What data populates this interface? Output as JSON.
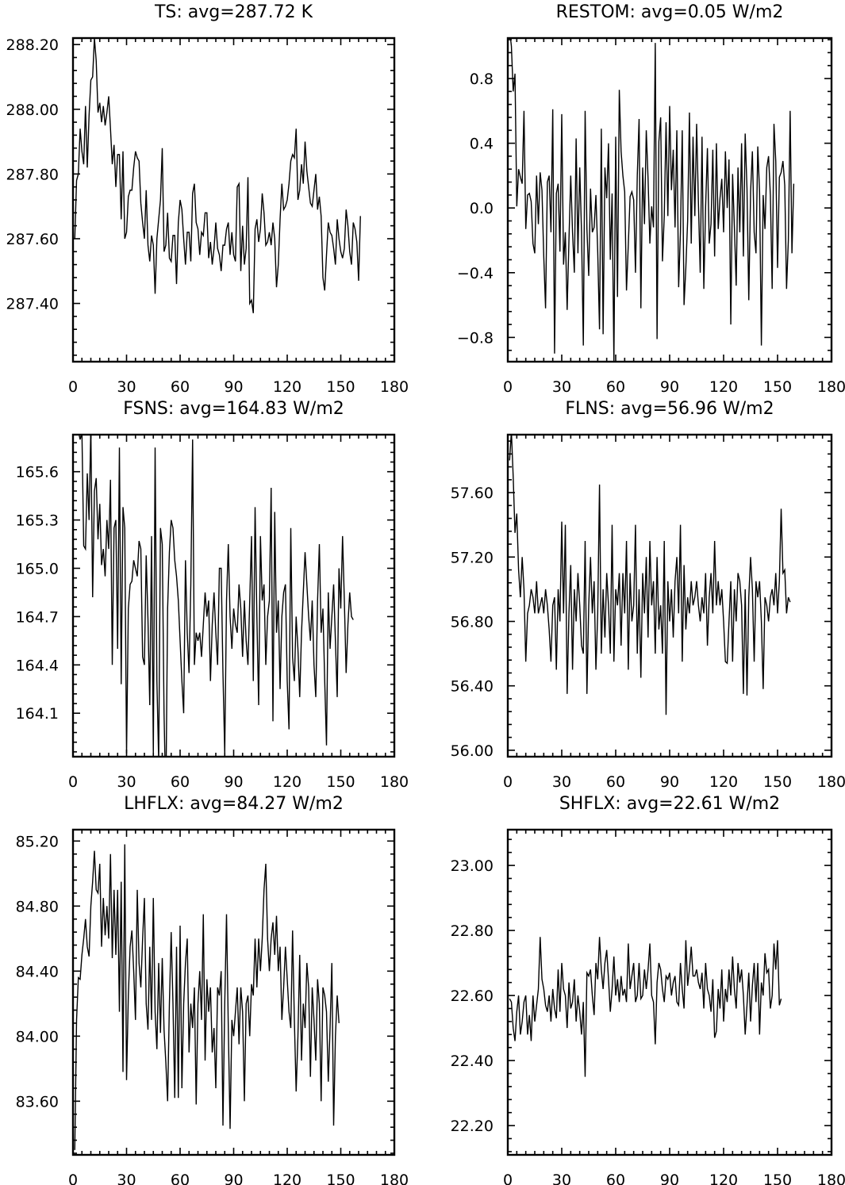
{
  "chart_data": [
    {
      "type": "line",
      "title": "TS: avg=287.72 K",
      "xlabel": "",
      "ylabel": "",
      "xlim": [
        0,
        180
      ],
      "ylim": [
        287.22,
        288.22
      ],
      "xticks": [
        0,
        30,
        60,
        90,
        120,
        150,
        180
      ],
      "xtick_labels": [
        "0",
        "30",
        "60",
        "90",
        "120",
        "150",
        "180"
      ],
      "yticks": [
        287.4,
        287.6,
        287.8,
        288.0,
        288.2
      ],
      "ytick_labels": [
        "287.40",
        "287.60",
        "287.80",
        "288.00",
        "288.20"
      ],
      "grid": false,
      "x_start": 1,
      "x_step": 1,
      "values": [
        287.6,
        287.78,
        287.8,
        287.94,
        287.87,
        287.83,
        288.01,
        287.82,
        287.98,
        288.09,
        288.1,
        288.22,
        288.15,
        287.99,
        288.02,
        287.96,
        288.01,
        287.95,
        287.99,
        288.04,
        287.94,
        287.83,
        287.89,
        287.76,
        287.86,
        287.86,
        287.66,
        287.87,
        287.6,
        287.62,
        287.73,
        287.75,
        287.75,
        287.82,
        287.87,
        287.85,
        287.84,
        287.71,
        287.65,
        287.6,
        287.75,
        287.58,
        287.53,
        287.61,
        287.58,
        287.43,
        287.6,
        287.66,
        287.72,
        287.88,
        287.56,
        287.58,
        287.68,
        287.54,
        287.53,
        287.61,
        287.61,
        287.46,
        287.65,
        287.72,
        287.69,
        287.6,
        287.52,
        287.62,
        287.62,
        287.53,
        287.74,
        287.77,
        287.65,
        287.63,
        287.55,
        287.62,
        287.61,
        287.68,
        287.68,
        287.54,
        287.59,
        287.52,
        287.57,
        287.65,
        287.57,
        287.55,
        287.5,
        287.58,
        287.58,
        287.63,
        287.65,
        287.55,
        287.62,
        287.55,
        287.53,
        287.76,
        287.77,
        287.5,
        287.64,
        287.52,
        287.57,
        287.79,
        287.4,
        287.41,
        287.37,
        287.63,
        287.66,
        287.59,
        287.63,
        287.74,
        287.68,
        287.58,
        287.59,
        287.62,
        287.58,
        287.65,
        287.6,
        287.45,
        287.52,
        287.66,
        287.77,
        287.69,
        287.7,
        287.72,
        287.77,
        287.84,
        287.86,
        287.85,
        287.94,
        287.72,
        287.75,
        287.83,
        287.77,
        287.9,
        287.81,
        287.76,
        287.71,
        287.7,
        287.75,
        287.8,
        287.69,
        287.73,
        287.67,
        287.48,
        287.44,
        287.55,
        287.65,
        287.62,
        287.61,
        287.57,
        287.52,
        287.66,
        287.6,
        287.56,
        287.54,
        287.57,
        287.69,
        287.64,
        287.56,
        287.52,
        287.65,
        287.63,
        287.59,
        287.47,
        287.67
      ]
    },
    {
      "type": "line",
      "title": "RESTOM: avg=0.05 W/m2",
      "xlabel": "",
      "ylabel": "",
      "xlim": [
        0,
        180
      ],
      "ylim": [
        -0.95,
        1.05
      ],
      "xticks": [
        0,
        30,
        60,
        90,
        120,
        150,
        180
      ],
      "xtick_labels": [
        "0",
        "30",
        "60",
        "90",
        "120",
        "150",
        "180"
      ],
      "yticks": [
        -0.8,
        -0.4,
        0.0,
        0.4,
        0.8
      ],
      "ytick_labels": [
        "−0.8",
        "−0.4",
        "0.0",
        "0.4",
        "0.8"
      ],
      "grid": false,
      "x_start": 1,
      "x_step": 1,
      "values": [
        1.1,
        1.0,
        0.72,
        0.83,
        0.01,
        0.24,
        0.19,
        0.15,
        0.6,
        -0.13,
        0.08,
        0.09,
        0.04,
        -0.22,
        -0.28,
        0.2,
        -0.1,
        0.22,
        0.11,
        -0.3,
        -0.62,
        0.16,
        0.2,
        -0.15,
        0.61,
        -0.9,
        0.09,
        0.15,
        -0.27,
        0.58,
        -0.35,
        -0.15,
        -0.63,
        -0.2,
        0.2,
        -0.15,
        -0.4,
        0.43,
        -0.28,
        0.25,
        -0.15,
        -0.85,
        0.6,
        -0.13,
        -0.42,
        0.12,
        -0.15,
        -0.12,
        0.08,
        -0.27,
        -0.75,
        0.49,
        -0.78,
        0.25,
        0.06,
        0.4,
        -0.32,
        0.09,
        -0.95,
        0.44,
        -0.55,
        0.73,
        0.35,
        0.2,
        0.1,
        -0.51,
        -0.23,
        0.07,
        0.1,
        0.05,
        -0.4,
        0.2,
        0.55,
        -0.62,
        0.25,
        -0.1,
        0.48,
        0.18,
        -0.22,
        0.01,
        -0.12,
        1.02,
        -0.81,
        0.41,
        0.56,
        -0.33,
        -0.05,
        0.53,
        -0.05,
        0.63,
        0.11,
        0.36,
        -0.12,
        0.48,
        -0.49,
        -0.15,
        0.48,
        -0.6,
        -0.37,
        -0.08,
        0.59,
        -0.22,
        0.44,
        -0.05,
        0.52,
        0.03,
        -0.4,
        0.44,
        -0.5,
        0.01,
        0.37,
        -0.22,
        -0.1,
        0.36,
        -0.3,
        0.4,
        -0.13,
        0.06,
        0.18,
        -0.15,
        0.35,
        0.0,
        0.3,
        -0.72,
        0.21,
        -0.12,
        -0.48,
        0.25,
        -0.15,
        0.4,
        -0.3,
        0.46,
        0.12,
        -0.57,
        0.1,
        0.35,
        -0.15,
        -0.28,
        0.38,
        0.1,
        -0.85,
        0.08,
        -0.13,
        0.25,
        0.32,
        0.08,
        -0.5,
        0.52,
        0.29,
        -0.37,
        0.19,
        0.22,
        0.29,
        0.14,
        -0.5,
        -0.2,
        0.6,
        -0.28,
        0.15
      ]
    },
    {
      "type": "line",
      "title": "FSNS: avg=164.83 W/m2",
      "xlabel": "",
      "ylabel": "",
      "xlim": [
        0,
        180
      ],
      "ylim": [
        163.83,
        165.83
      ],
      "xticks": [
        0,
        30,
        60,
        90,
        120,
        150,
        180
      ],
      "xtick_labels": [
        "0",
        "30",
        "60",
        "90",
        "120",
        "150",
        "180"
      ],
      "yticks": [
        164.1,
        164.4,
        164.7,
        165.0,
        165.3,
        165.6
      ],
      "ytick_labels": [
        "164.1",
        "164.4",
        "164.7",
        "165.0",
        "165.3",
        "165.6"
      ],
      "grid": false,
      "x_start": 1,
      "x_step": 1,
      "values": [
        165.95,
        165.9,
        165.85,
        165.8,
        165.85,
        165.14,
        165.12,
        165.59,
        165.3,
        165.88,
        164.82,
        165.48,
        165.56,
        165.18,
        165.4,
        165.02,
        165.12,
        164.95,
        165.3,
        165.12,
        165.55,
        164.4,
        165.25,
        165.3,
        164.5,
        165.75,
        164.28,
        165.38,
        165.25,
        163.85,
        164.75,
        164.9,
        164.92,
        165.05,
        165.0,
        164.95,
        165.17,
        165.12,
        164.45,
        164.4,
        165.08,
        164.68,
        164.15,
        165.2,
        163.85,
        165.75,
        164.3,
        163.8,
        165.25,
        165.15,
        164.1,
        163.55,
        164.75,
        165.1,
        165.3,
        165.25,
        165.05,
        164.95,
        164.8,
        164.55,
        164.3,
        164.1,
        165.05,
        164.6,
        164.35,
        164.9,
        165.8,
        164.4,
        164.6,
        164.55,
        164.6,
        164.45,
        164.65,
        164.85,
        164.7,
        164.8,
        164.3,
        164.65,
        164.85,
        164.6,
        164.4,
        165.0,
        165.0,
        164.35,
        163.85,
        164.8,
        165.15,
        164.7,
        164.5,
        164.75,
        164.65,
        164.6,
        164.9,
        164.75,
        164.45,
        164.8,
        164.55,
        164.4,
        164.8,
        165.2,
        164.3,
        165.38,
        164.7,
        164.15,
        165.2,
        164.8,
        164.9,
        164.4,
        164.7,
        164.8,
        165.5,
        164.05,
        165.35,
        164.6,
        164.8,
        164.25,
        164.7,
        164.85,
        164.9,
        164.3,
        164.0,
        165.25,
        164.45,
        164.3,
        164.7,
        164.5,
        164.2,
        164.6,
        164.85,
        165.1,
        164.9,
        164.7,
        164.55,
        164.8,
        164.4,
        164.2,
        164.8,
        165.15,
        164.6,
        164.75,
        164.3,
        163.9,
        164.85,
        164.5,
        164.7,
        164.9,
        164.55,
        164.2,
        165.0,
        164.75,
        165.2,
        164.8,
        164.35,
        164.65,
        164.85,
        164.7,
        164.68
      ]
    },
    {
      "type": "line",
      "title": "FLNS: avg=56.96 W/m2",
      "xlabel": "",
      "ylabel": "",
      "xlim": [
        0,
        180
      ],
      "ylim": [
        55.96,
        57.96
      ],
      "xticks": [
        0,
        30,
        60,
        90,
        120,
        150,
        180
      ],
      "xtick_labels": [
        "0",
        "30",
        "60",
        "90",
        "120",
        "150",
        "180"
      ],
      "yticks": [
        56.0,
        56.4,
        56.8,
        57.2,
        57.6
      ],
      "ytick_labels": [
        "56.00",
        "56.40",
        "56.80",
        "57.20",
        "57.60"
      ],
      "grid": false,
      "x_start": 1,
      "x_step": 1,
      "values": [
        57.8,
        57.98,
        57.7,
        57.35,
        57.47,
        57.12,
        56.95,
        57.2,
        57.0,
        56.55,
        56.85,
        56.9,
        57.0,
        56.95,
        56.85,
        57.05,
        56.85,
        56.9,
        56.95,
        56.85,
        57.0,
        56.9,
        56.75,
        56.55,
        56.9,
        56.95,
        56.5,
        57.0,
        56.8,
        57.42,
        56.85,
        57.4,
        56.35,
        56.85,
        57.15,
        56.5,
        57.0,
        56.8,
        57.1,
        56.9,
        56.65,
        56.6,
        57.3,
        56.35,
        56.9,
        57.2,
        56.85,
        57.05,
        56.5,
        56.85,
        57.65,
        56.6,
        57.0,
        56.7,
        57.1,
        56.9,
        56.6,
        57.4,
        56.55,
        57.0,
        56.9,
        57.1,
        56.65,
        57.1,
        56.85,
        57.3,
        56.5,
        57.1,
        56.8,
        56.9,
        57.4,
        56.6,
        57.0,
        56.45,
        57.1,
        56.85,
        57.2,
        56.7,
        57.3,
        56.9,
        57.05,
        56.6,
        57.2,
        56.75,
        56.9,
        56.6,
        57.3,
        56.22,
        57.05,
        56.8,
        57.0,
        56.7,
        57.05,
        57.2,
        56.85,
        57.4,
        56.55,
        57.15,
        56.75,
        56.95,
        56.85,
        57.05,
        56.9,
        56.95,
        57.05,
        56.9,
        56.8,
        56.95,
        56.85,
        57.1,
        56.65,
        56.95,
        57.1,
        56.85,
        57.3,
        56.9,
        57.05,
        56.9,
        57.0,
        56.8,
        56.55,
        56.54,
        56.8,
        57.05,
        56.55,
        57.0,
        56.8,
        57.1,
        57.05,
        56.9,
        56.35,
        57.0,
        56.34,
        56.95,
        57.2,
        57.0,
        56.55,
        57.05,
        56.95,
        57.05,
        56.8,
        56.38,
        56.95,
        56.9,
        56.8,
        56.95,
        57.0,
        56.9,
        57.1,
        56.85,
        57.05,
        57.5,
        57.1,
        57.12,
        56.85,
        56.95,
        56.92
      ]
    },
    {
      "type": "line",
      "title": "LHFLX: avg=84.27 W/m2",
      "xlabel": "",
      "ylabel": "",
      "xlim": [
        0,
        180
      ],
      "ylim": [
        83.27,
        85.27
      ],
      "xticks": [
        0,
        30,
        60,
        90,
        120,
        150,
        180
      ],
      "xtick_labels": [
        "0",
        "30",
        "60",
        "90",
        "120",
        "150",
        "180"
      ],
      "yticks": [
        83.6,
        84.0,
        84.4,
        84.8,
        85.2
      ],
      "ytick_labels": [
        "83.60",
        "84.00",
        "84.40",
        "84.80",
        "85.20"
      ],
      "grid": false,
      "x_start": 1,
      "x_step": 1,
      "values": [
        83.3,
        84.1,
        84.36,
        84.35,
        84.5,
        84.6,
        84.72,
        84.55,
        84.49,
        84.8,
        84.95,
        85.14,
        84.9,
        84.88,
        85.06,
        84.55,
        84.85,
        84.62,
        84.8,
        84.6,
        85.12,
        84.48,
        84.9,
        84.5,
        84.9,
        84.15,
        84.95,
        83.78,
        85.18,
        83.73,
        84.25,
        84.55,
        84.65,
        84.4,
        84.1,
        84.9,
        84.45,
        84.3,
        84.6,
        84.85,
        84.2,
        84.04,
        84.55,
        84.1,
        84.85,
        84.15,
        83.92,
        84.45,
        84.02,
        84.48,
        84.04,
        83.84,
        83.6,
        84.2,
        84.64,
        84.2,
        83.62,
        84.55,
        83.62,
        84.68,
        83.68,
        84.2,
        84.45,
        84.6,
        83.9,
        84.2,
        84.05,
        84.3,
        83.58,
        84.2,
        84.4,
        84.1,
        84.75,
        83.85,
        84.35,
        84.15,
        84.3,
        83.9,
        84.05,
        83.68,
        84.3,
        84.25,
        84.4,
        83.45,
        84.2,
        84.75,
        84.05,
        83.43,
        84.1,
        84.0,
        84.15,
        84.3,
        83.95,
        84.3,
        84.15,
        83.6,
        84.2,
        84.25,
        84.0,
        84.32,
        84.25,
        84.6,
        84.3,
        84.6,
        84.4,
        84.6,
        84.9,
        85.06,
        84.6,
        84.4,
        84.6,
        84.7,
        84.5,
        84.74,
        84.4,
        84.55,
        84.1,
        84.3,
        84.55,
        84.35,
        84.15,
        84.05,
        84.65,
        84.1,
        83.66,
        84.0,
        84.5,
        83.85,
        84.2,
        84.05,
        84.45,
        84.3,
        83.75,
        84.3,
        84.1,
        83.85,
        84.35,
        84.2,
        83.6,
        84.3,
        84.25,
        84.15,
        83.72,
        84.05,
        84.45,
        83.45,
        84.0,
        84.25,
        84.08
      ]
    },
    {
      "type": "line",
      "title": "SHFLX: avg=22.61 W/m2",
      "xlabel": "",
      "ylabel": "",
      "xlim": [
        0,
        180
      ],
      "ylim": [
        22.11,
        23.11
      ],
      "xticks": [
        0,
        30,
        60,
        90,
        120,
        150,
        180
      ],
      "xtick_labels": [
        "0",
        "30",
        "60",
        "90",
        "120",
        "150",
        "180"
      ],
      "yticks": [
        22.2,
        22.4,
        22.6,
        22.8,
        23.0
      ],
      "ytick_labels": [
        "22.20",
        "22.40",
        "22.60",
        "22.80",
        "23.00"
      ],
      "grid": false,
      "x_start": 1,
      "x_step": 1,
      "values": [
        22.59,
        22.58,
        22.5,
        22.46,
        22.55,
        22.6,
        22.48,
        22.52,
        22.58,
        22.6,
        22.48,
        22.54,
        22.46,
        22.6,
        22.52,
        22.57,
        22.62,
        22.78,
        22.65,
        22.62,
        22.57,
        22.55,
        22.6,
        22.52,
        22.62,
        22.56,
        22.53,
        22.68,
        22.55,
        22.7,
        22.62,
        22.6,
        22.5,
        22.64,
        22.56,
        22.58,
        22.65,
        22.52,
        22.6,
        22.55,
        22.48,
        22.58,
        22.35,
        22.67,
        22.66,
        22.68,
        22.6,
        22.54,
        22.7,
        22.65,
        22.78,
        22.68,
        22.62,
        22.7,
        22.74,
        22.65,
        22.55,
        22.62,
        22.72,
        22.6,
        22.65,
        22.58,
        22.66,
        22.6,
        22.62,
        22.58,
        22.76,
        22.62,
        22.66,
        22.7,
        22.58,
        22.6,
        22.7,
        22.59,
        22.6,
        22.68,
        22.62,
        22.68,
        22.76,
        22.6,
        22.58,
        22.45,
        22.64,
        22.7,
        22.68,
        22.62,
        22.58,
        22.66,
        22.65,
        22.67,
        22.6,
        22.64,
        22.66,
        22.58,
        22.57,
        22.7,
        22.62,
        22.56,
        22.77,
        22.63,
        22.68,
        22.75,
        22.66,
        22.66,
        22.68,
        22.64,
        22.62,
        22.67,
        22.56,
        22.7,
        22.62,
        22.6,
        22.55,
        22.65,
        22.47,
        22.49,
        22.62,
        22.56,
        22.68,
        22.52,
        22.62,
        22.58,
        22.68,
        22.6,
        22.72,
        22.62,
        22.56,
        22.7,
        22.64,
        22.68,
        22.6,
        22.48,
        22.57,
        22.67,
        22.52,
        22.63,
        22.7,
        22.58,
        22.7,
        22.48,
        22.64,
        22.6,
        22.73,
        22.67,
        22.68,
        22.56,
        22.6,
        22.76,
        22.68,
        22.77,
        22.57,
        22.59
      ]
    }
  ]
}
